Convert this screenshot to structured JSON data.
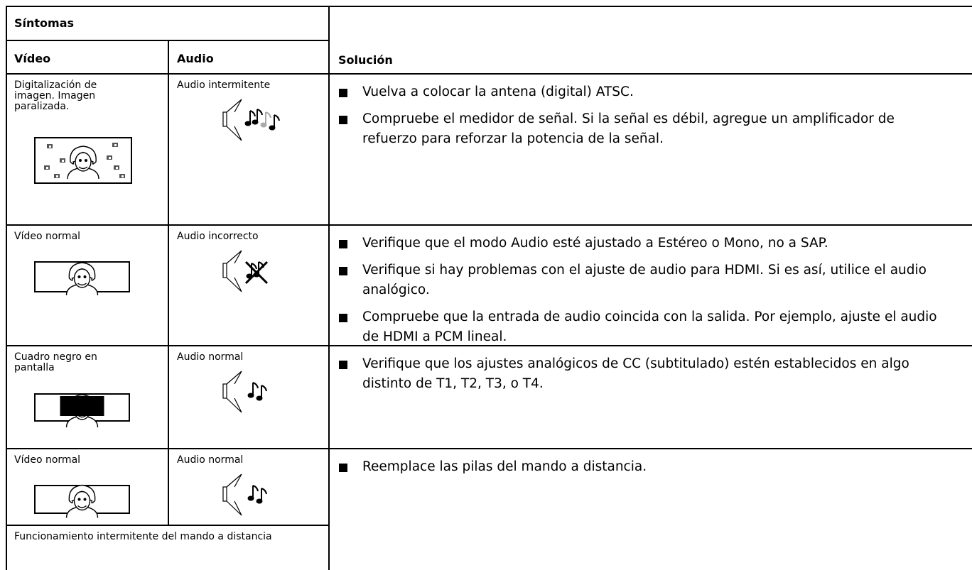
{
  "table": {
    "header": {
      "symptoms": "Síntomas",
      "video": "Vídeo",
      "audio": "Audio",
      "solution": "Solución"
    },
    "rows": [
      {
        "video": "Digitalización de imagen. Imagen paralizada.",
        "audio": "Audio intermitente",
        "solutions": [
          "Vuelva a colocar la antena (digital) ATSC.",
          "Compruebe el medidor de señal. Si la señal es débil, agregue un amplificador de refuerzo para reforzar la potencia de la señal."
        ]
      },
      {
        "video": "Vídeo normal",
        "audio": "Audio incorrecto",
        "solutions": [
          "Verifique que el modo Audio esté ajustado a Estéreo o Mono, no a SAP.",
          "Verifique si hay problemas con el ajuste de audio para HDMI. Si es así, utilice el audio analógico.",
          "Compruebe que la entrada de audio coincida con la salida. Por ejemplo, ajuste el audio de HDMI a PCM lineal."
        ]
      },
      {
        "video": "Cuadro negro en pantalla",
        "audio": "Audio normal",
        "solutions": [
          "Verifique que los ajustes analógicos de CC (subtitulado) estén establecidos en algo distinto de T1, T2, T3, o T4."
        ]
      },
      {
        "video": "Vídeo normal",
        "audio": "Audio normal",
        "solutions": [
          "Reemplace las pilas del mando a distancia."
        ]
      }
    ],
    "extra_symptom": "Funcionamiento intermitente del mando a distancia"
  }
}
